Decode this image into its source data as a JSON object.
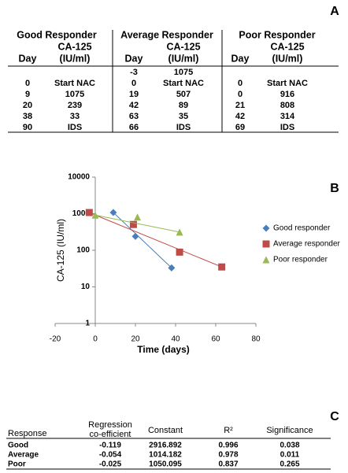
{
  "panel_a": {
    "label": "A",
    "groups": [
      {
        "name": "Good Responder",
        "day": "Day",
        "unit1": "CA-125",
        "unit2": "(IU/ml)"
      },
      {
        "name": "Average Responder",
        "day": "Day",
        "unit1": "CA-125",
        "unit2": "(IU/ml)"
      },
      {
        "name": "Poor Responder",
        "day": "Day",
        "unit1": "CA-125",
        "unit2": "(IU/ml)"
      }
    ],
    "rows": [
      [
        null,
        null,
        -3,
        1075,
        null,
        null
      ],
      [
        0,
        "Start NAC",
        0,
        "Start NAC",
        0,
        "Start NAC"
      ],
      [
        9,
        1075,
        19,
        507,
        0,
        916
      ],
      [
        20,
        239,
        42,
        89,
        21,
        808
      ],
      [
        38,
        33,
        63,
        35,
        42,
        314
      ],
      [
        90,
        "IDS",
        66,
        "IDS",
        69,
        "IDS"
      ]
    ]
  },
  "chart_data": {
    "type": "scatter",
    "label": "B",
    "xlabel": "Time (days)",
    "ylabel": "CA-125 (IU/ml)",
    "xlim": [
      -20,
      80
    ],
    "xticks": [
      -20,
      0,
      20,
      40,
      60,
      80
    ],
    "ylim": [
      1,
      10000
    ],
    "yticks": [
      1,
      10,
      100,
      1000,
      10000
    ],
    "log_y": true,
    "legend": "right",
    "series": [
      {
        "name": "Good responder",
        "color": "#4a7ebb",
        "marker": "diamond",
        "x": [
          9,
          20,
          38
        ],
        "values": [
          1075,
          239,
          33
        ]
      },
      {
        "name": "Average responder",
        "color": "#be4b48",
        "marker": "square",
        "x": [
          -3,
          19,
          42,
          63
        ],
        "values": [
          1075,
          507,
          89,
          35
        ]
      },
      {
        "name": "Poor responder",
        "color": "#98b954",
        "marker": "triangle",
        "x": [
          0,
          21,
          42
        ],
        "values": [
          916,
          808,
          314
        ]
      }
    ]
  },
  "panel_c": {
    "label": "C",
    "header": [
      "Response",
      "Regression",
      "co-efficient",
      "Constant",
      "R²",
      "Significance"
    ],
    "rows": [
      [
        "Good",
        -0.119,
        2916.892,
        0.996,
        0.038
      ],
      [
        "Average",
        -0.054,
        1014.182,
        0.978,
        0.011
      ],
      [
        "Poor",
        -0.025,
        1050.095,
        0.837,
        0.265
      ]
    ]
  }
}
